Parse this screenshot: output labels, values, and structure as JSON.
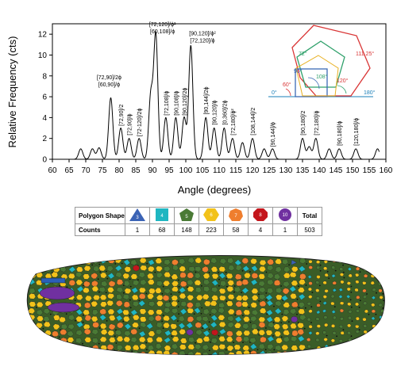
{
  "chart_data": {
    "type": "line",
    "xlabel": "Angle (degrees)",
    "ylabel": "Relative Frequency (cts)",
    "xlim": [
      60,
      160
    ],
    "ylim": [
      0,
      13
    ],
    "xticks": [
      "60",
      "65",
      "70",
      "75",
      "80",
      "85",
      "90",
      "95",
      "100",
      "105",
      "110",
      "115",
      "120",
      "125",
      "130",
      "135",
      "140",
      "145",
      "150",
      "155",
      "160"
    ],
    "yticks": [
      "0",
      "2",
      "4",
      "6",
      "8",
      "10",
      "12"
    ],
    "peaks": [
      {
        "x": 68.5,
        "y": 1.0
      },
      {
        "x": 72.0,
        "y": 1.0
      },
      {
        "x": 74.0,
        "y": 1.1
      },
      {
        "x": 77.5,
        "y": 5.9
      },
      {
        "x": 80.5,
        "y": 3.0
      },
      {
        "x": 83.0,
        "y": 2.0
      },
      {
        "x": 86.0,
        "y": 2.0
      },
      {
        "x": 89.5,
        "y": 6.1
      },
      {
        "x": 91.0,
        "y": 11.9
      },
      {
        "x": 94.0,
        "y": 4.0
      },
      {
        "x": 97.0,
        "y": 4.0
      },
      {
        "x": 99.5,
        "y": 4.0
      },
      {
        "x": 101.5,
        "y": 10.9
      },
      {
        "x": 106.0,
        "y": 4.0
      },
      {
        "x": 108.5,
        "y": 3.0
      },
      {
        "x": 111.5,
        "y": 3.0
      },
      {
        "x": 114.0,
        "y": 2.0
      },
      {
        "x": 117.0,
        "y": 1.6
      },
      {
        "x": 120.0,
        "y": 2.0
      },
      {
        "x": 123.5,
        "y": 1.0
      },
      {
        "x": 126.0,
        "y": 1.0
      },
      {
        "x": 135.0,
        "y": 2.0
      },
      {
        "x": 137.0,
        "y": 1.2
      },
      {
        "x": 139.0,
        "y": 2.0
      },
      {
        "x": 143.0,
        "y": 1.0
      },
      {
        "x": 146.0,
        "y": 1.0
      },
      {
        "x": 151.0,
        "y": 1.0
      },
      {
        "x": 157.5,
        "y": 1.0
      }
    ],
    "annotations": [
      {
        "lines": [
          "[72,90]/2ϕ",
          "[60,90]/ϕ"
        ],
        "x": 77,
        "y": 7.0
      },
      {
        "lines": [
          "[72,90]/2"
        ],
        "x": 80.5,
        "y": 3.2
      },
      {
        "lines": [
          "[72,90]/ϕ"
        ],
        "x": 83,
        "y": 2.3
      },
      {
        "lines": [
          "[72-120]/2ϕ"
        ],
        "x": 86,
        "y": 2.2
      },
      {
        "lines": [
          "[72,120]/ϕ²",
          "[60,108]/ϕ"
        ],
        "x": 93,
        "y": 12.1
      },
      {
        "lines": [
          "[72,108]/ϕ"
        ],
        "x": 94,
        "y": 4.2
      },
      {
        "lines": [
          "[90,108]/ϕ"
        ],
        "x": 97,
        "y": 4.2
      },
      {
        "lines": [
          "[90,120]/2ϕ"
        ],
        "x": 99.5,
        "y": 4.2
      },
      {
        "lines": [
          "[90,120]/ϕ²",
          "[72,120]/ϕ"
        ],
        "x": 105,
        "y": 11.2
      },
      {
        "lines": [
          "[90,144]/2ϕ"
        ],
        "x": 106,
        "y": 4.3
      },
      {
        "lines": [
          "[90,120]/ϕ"
        ],
        "x": 108.5,
        "y": 3.3
      },
      {
        "lines": [
          "[0,360]/2ϕ"
        ],
        "x": 111.5,
        "y": 3.3
      },
      {
        "lines": [
          "[72,180]/ϕ²"
        ],
        "x": 114,
        "y": 2.3
      },
      {
        "lines": [
          "[108,144]/2"
        ],
        "x": 120,
        "y": 2.3
      },
      {
        "lines": [
          "[90,144]/ϕ"
        ],
        "x": 126,
        "y": 1.2
      },
      {
        "lines": [
          "[90,180]/2"
        ],
        "x": 135,
        "y": 2.3
      },
      {
        "lines": [
          "[72,180]/ϕ"
        ],
        "x": 139,
        "y": 2.3
      },
      {
        "lines": [
          "[90,180]/ϕ"
        ],
        "x": 146,
        "y": 1.3
      },
      {
        "lines": [
          "[120,180]/ϕ"
        ],
        "x": 151,
        "y": 1.3
      }
    ],
    "inset_labels": [
      "72°",
      "90°",
      "120°",
      "108°",
      "111.25°",
      "0°",
      "180°",
      "60°"
    ]
  },
  "table": {
    "header_label": "Polygon Shape",
    "counts_label": "Counts",
    "total_label": "Total",
    "shapes": [
      {
        "sides": "3",
        "shape": "triangle",
        "color": "#3b63b5",
        "count": "1"
      },
      {
        "sides": "4",
        "shape": "square",
        "color": "#1fb6c1",
        "count": "68"
      },
      {
        "sides": "5",
        "shape": "pentagon",
        "color": "#4a7a35",
        "count": "148"
      },
      {
        "sides": "6",
        "shape": "hexagon",
        "color": "#f2c21a",
        "count": "223"
      },
      {
        "sides": "7",
        "shape": "heptagon",
        "color": "#ef7e2e",
        "count": "58"
      },
      {
        "sides": "8",
        "shape": "octagon",
        "color": "#c4161c",
        "count": "4"
      },
      {
        "sides": "10",
        "shape": "decagon",
        "color": "#7030a0",
        "count": "1"
      }
    ],
    "total": "503"
  }
}
